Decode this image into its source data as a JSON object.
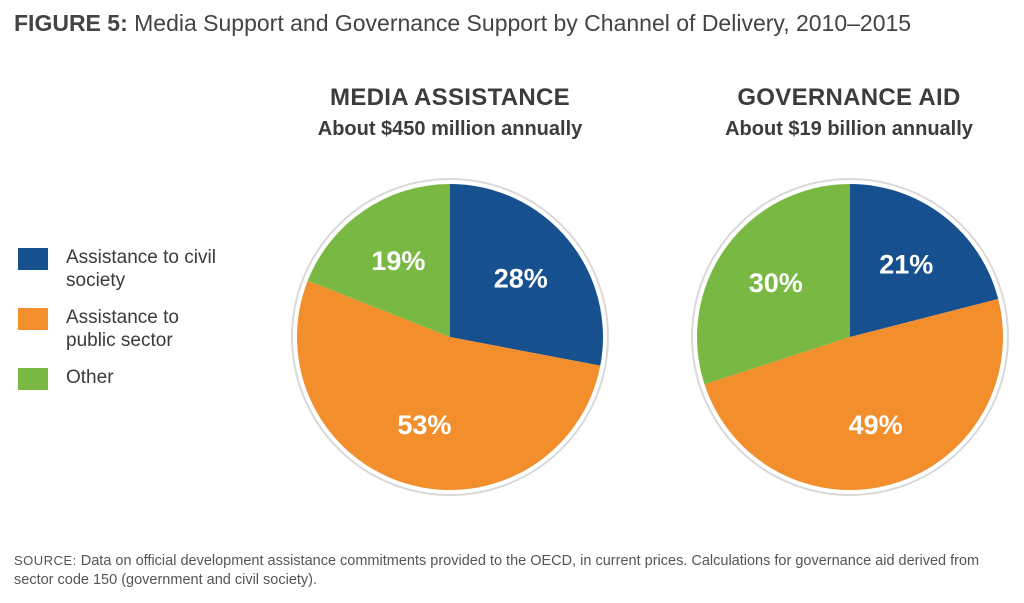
{
  "figure": {
    "prefix": "FIGURE 5:",
    "title": "Media Support and Governance Support by Channel of Delivery, 2010–2015"
  },
  "legend": [
    {
      "label": "Assistance to civil society",
      "color": "#17508f"
    },
    {
      "label": "Assistance to public sector",
      "color": "#f28e2b"
    },
    {
      "label": "Other",
      "color": "#79b943"
    }
  ],
  "chart_data": [
    {
      "type": "pie",
      "title": "MEDIA ASSISTANCE",
      "subtitle": "About $450 million annually",
      "slices": [
        {
          "label": "Assistance to civil society",
          "value": 28,
          "text": "28%",
          "color": "#17508f"
        },
        {
          "label": "Assistance to public sector",
          "value": 53,
          "text": "53%",
          "color": "#f28e2b"
        },
        {
          "label": "Other",
          "value": 19,
          "text": "19%",
          "color": "#79b943"
        }
      ]
    },
    {
      "type": "pie",
      "title": "GOVERNANCE AID",
      "subtitle": "About $19 billion annually",
      "slices": [
        {
          "label": "Assistance to civil society",
          "value": 21,
          "text": "21%",
          "color": "#17508f"
        },
        {
          "label": "Assistance to public sector",
          "value": 49,
          "text": "49%",
          "color": "#f28e2b"
        },
        {
          "label": "Other",
          "value": 30,
          "text": "30%",
          "color": "#79b943"
        }
      ]
    }
  ],
  "source": {
    "label": "SOURCE:",
    "text": "Data on official development assistance commitments provided to the OECD, in current prices. Calculations for governance aid derived from sector code 150 (government and civil society)."
  }
}
